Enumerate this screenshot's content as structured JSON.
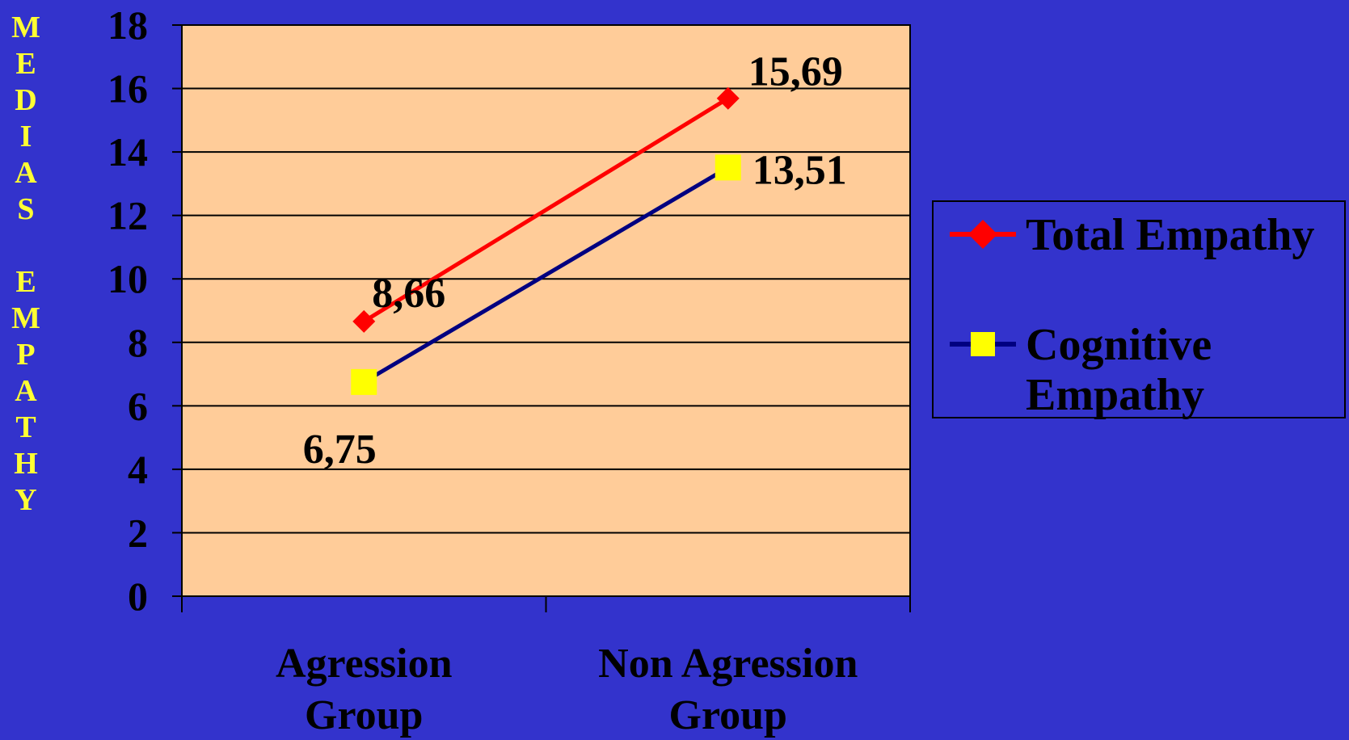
{
  "chart_data": {
    "type": "line",
    "categories": [
      "Agression Group",
      "Non Agression Group"
    ],
    "category_lines": [
      [
        "Agression",
        "Group"
      ],
      [
        "Non Agression",
        "Group"
      ]
    ],
    "series": [
      {
        "name": "Total Empathy",
        "values": [
          8.66,
          15.69
        ],
        "labels": [
          "8,66",
          "15,69"
        ],
        "color": "#FF0000",
        "marker": "diamond",
        "marker_color": "#FF0000"
      },
      {
        "name": "Cognitive Empathy",
        "values": [
          6.75,
          13.51
        ],
        "labels": [
          "6,75",
          "13,51"
        ],
        "color": "#000080",
        "marker": "square",
        "marker_color": "#FFFF00"
      }
    ],
    "ylabel": "MEDIAS EMPATHY",
    "ylabel_letters": [
      "M",
      "E",
      "D",
      "I",
      "A",
      "S",
      "",
      "E",
      "M",
      "P",
      "A",
      "T",
      "H",
      "Y"
    ],
    "ylim": [
      0,
      18
    ],
    "yticks": [
      "0",
      "2",
      "4",
      "6",
      "8",
      "10",
      "12",
      "14",
      "16",
      "18"
    ],
    "grid": true,
    "legend_position": "right",
    "plot_bg": "#FFCC99",
    "page_bg": "#3333CC"
  },
  "legend": {
    "entries": [
      "Total Empathy",
      "Cognitive Empathy"
    ]
  }
}
